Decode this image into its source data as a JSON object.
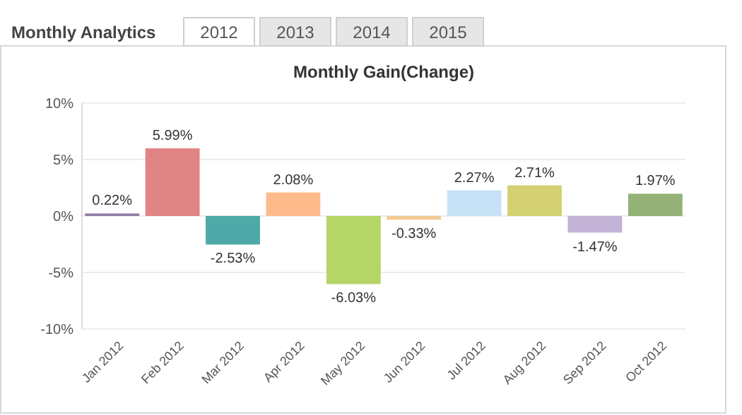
{
  "chart_data": {
    "type": "bar",
    "title": "Monthly Gain(Change)",
    "annotations": [
      "Monthly Analytics",
      "2012",
      "2013",
      "2014",
      "2015"
    ],
    "categories": [
      "Jan 2012",
      "Feb 2012",
      "Mar 2012",
      "Apr 2012",
      "May 2012",
      "Jun 2012",
      "Jul 2012",
      "Aug 2012",
      "Sep 2012",
      "Oct 2012"
    ],
    "values": [
      0.22,
      5.99,
      -2.53,
      2.08,
      -6.03,
      -0.33,
      2.27,
      2.71,
      -1.47,
      1.97
    ],
    "value_labels": [
      "0.22%",
      "5.99%",
      "-2.53%",
      "2.08%",
      "-6.03%",
      "-0.33%",
      "2.27%",
      "2.71%",
      "-1.47%",
      "1.97%"
    ],
    "colors": [
      "#8e7aa8",
      "#e08584",
      "#4eaaa8",
      "#ffba8c",
      "#b5d566",
      "#f4ca94",
      "#c6e2f6",
      "#d3d172",
      "#c3b3d6",
      "#94b277"
    ],
    "ylim": [
      -10,
      10
    ],
    "yticks": [
      {
        "value": -10,
        "label": "-10%"
      },
      {
        "value": -5,
        "label": "-5%"
      },
      {
        "value": 0,
        "label": "0%"
      },
      {
        "value": 5,
        "label": "5%"
      },
      {
        "value": 10,
        "label": "10%"
      }
    ],
    "grid": "y"
  }
}
